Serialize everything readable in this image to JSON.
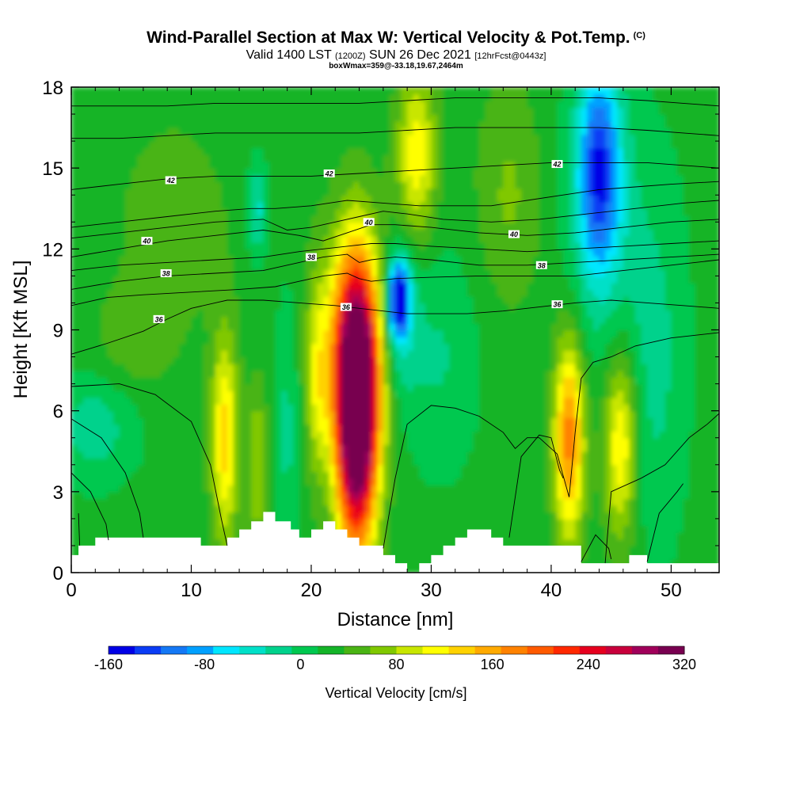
{
  "header": {
    "title": "Wind-Parallel Section at Max W: Vertical Velocity & Pot.Temp.",
    "copyright": "(C)",
    "subtitle_a": "Valid 1400 LST",
    "subtitle_b": "(1200Z)",
    "subtitle_c": "SUN 26 Dec 2021",
    "subtitle_d": "[12hrFcst@0443z]",
    "box_info": "boxWmax=359@-33.18,19.67,2464m"
  },
  "chart_data": {
    "type": "heatmap",
    "title": "Wind-Parallel Section at Max W: Vertical Velocity & Pot.Temp.",
    "xlabel": "Distance [nm]",
    "ylabel": "Height [Kft MSL]",
    "xlim": [
      0,
      54
    ],
    "ylim": [
      0,
      18
    ],
    "x_ticks": [
      "0",
      "10",
      "20",
      "30",
      "40",
      "50"
    ],
    "y_ticks": [
      "0",
      "3",
      "6",
      "9",
      "12",
      "15",
      "18"
    ],
    "x_tick_values": [
      0,
      10,
      20,
      30,
      40,
      50
    ],
    "y_tick_values": [
      0,
      3,
      6,
      9,
      12,
      15,
      18
    ],
    "colorbar": {
      "label": "Vertical Velocity [cm/s]",
      "min": -160,
      "max": 320,
      "step": 20,
      "tick_labels": [
        "-160",
        "-80",
        "0",
        "80",
        "160",
        "240",
        "320"
      ],
      "tick_values": [
        -160,
        -80,
        0,
        80,
        160,
        240,
        320
      ],
      "colors": [
        "#0000e6",
        "#0a3cf5",
        "#1478f5",
        "#00a0ff",
        "#00e6ff",
        "#00e0c8",
        "#00d28c",
        "#00c850",
        "#14b428",
        "#4ab414",
        "#80c800",
        "#c8e600",
        "#ffff00",
        "#ffd200",
        "#ffaa00",
        "#ff8200",
        "#ff5a00",
        "#ff2800",
        "#e6001e",
        "#c8003c",
        "#a0005a",
        "#780050"
      ]
    },
    "features": [
      {
        "kind": "updraft",
        "x": 23.8,
        "y": 6.0,
        "peak": 340,
        "sx": 1.2,
        "sy": 3.5
      },
      {
        "kind": "updraft",
        "x": 23.5,
        "y": 8.5,
        "peak": 90,
        "sx": 2.2,
        "sy": 3.0
      },
      {
        "kind": "updraft",
        "x": 41.5,
        "y": 5.0,
        "peak": 145,
        "sx": 0.9,
        "sy": 2.6
      },
      {
        "kind": "updraft",
        "x": 45.8,
        "y": 4.8,
        "peak": 100,
        "sx": 1.0,
        "sy": 2.5
      },
      {
        "kind": "updraft",
        "x": 12.8,
        "y": 5.0,
        "peak": 100,
        "sx": 0.8,
        "sy": 2.8
      },
      {
        "kind": "updraft",
        "x": 28.8,
        "y": 15.5,
        "peak": 85,
        "sx": 1.2,
        "sy": 2.3
      },
      {
        "kind": "updraft",
        "x": 20.5,
        "y": 7.0,
        "peak": 50,
        "sx": 0.6,
        "sy": 2.5
      },
      {
        "kind": "updraft",
        "x": 15.5,
        "y": 4.0,
        "peak": 55,
        "sx": 0.6,
        "sy": 2.0
      },
      {
        "kind": "updraft",
        "x": 8.5,
        "y": 13.0,
        "peak": 30,
        "sx": 3.0,
        "sy": 2.5
      },
      {
        "kind": "updraft",
        "x": 36.5,
        "y": 14.0,
        "peak": 35,
        "sx": 2.0,
        "sy": 3.0
      },
      {
        "kind": "updraft",
        "x": 5.0,
        "y": 8.5,
        "peak": 25,
        "sx": 2.5,
        "sy": 1.5
      },
      {
        "kind": "downdraft",
        "x": 27.3,
        "y": 10.2,
        "peak": -160,
        "sx": 0.6,
        "sy": 0.9
      },
      {
        "kind": "downdraft",
        "x": 27.3,
        "y": 9.5,
        "peak": -60,
        "sx": 1.1,
        "sy": 2.0
      },
      {
        "kind": "downdraft",
        "x": 44.0,
        "y": 15.0,
        "peak": -120,
        "sx": 1.2,
        "sy": 2.6
      },
      {
        "kind": "downdraft",
        "x": 44.0,
        "y": 13.5,
        "peak": -40,
        "sx": 2.2,
        "sy": 4.0
      },
      {
        "kind": "downdraft",
        "x": 15.5,
        "y": 13.5,
        "peak": -55,
        "sx": 0.6,
        "sy": 1.2
      },
      {
        "kind": "downdraft",
        "x": 2.0,
        "y": 5.5,
        "peak": -40,
        "sx": 2.5,
        "sy": 1.5
      },
      {
        "kind": "downdraft",
        "x": 30.5,
        "y": 8.0,
        "peak": -30,
        "sx": 2.5,
        "sy": 3.0
      },
      {
        "kind": "downdraft",
        "x": 48.5,
        "y": 8.0,
        "peak": -35,
        "sx": 2.0,
        "sy": 5.0
      },
      {
        "kind": "downdraft",
        "x": 18.0,
        "y": 5.5,
        "peak": -35,
        "sx": 0.7,
        "sy": 3.5
      }
    ],
    "terrain": {
      "x": [
        0,
        0.6,
        0.6,
        2.0,
        2.0,
        10.8,
        10.8,
        13.0,
        13.0,
        14.0,
        14.0,
        15.0,
        15.0,
        16.0,
        16.0,
        17.0,
        17.0,
        18.3,
        18.3,
        19.0,
        19.0,
        20.0,
        20.0,
        21.0,
        21.0,
        22.0,
        22.0,
        23.0,
        23.0,
        24.0,
        24.0,
        26.0,
        26.0,
        27.0,
        27.0,
        28.0,
        28.0,
        29.0,
        29.0,
        30.0,
        30.0,
        31.0,
        31.0,
        32.0,
        32.0,
        33.0,
        33.0,
        35.0,
        35.0,
        36.0,
        36.0,
        42.5,
        42.5,
        46.5,
        46.5,
        48.0,
        48.0,
        54.0
      ],
      "z": [
        0.65,
        0.65,
        1.0,
        1.0,
        1.3,
        1.3,
        1.0,
        1.0,
        1.3,
        1.3,
        1.6,
        1.6,
        1.9,
        1.9,
        2.25,
        2.25,
        1.9,
        1.9,
        1.6,
        1.6,
        1.3,
        1.3,
        1.6,
        1.6,
        1.9,
        1.9,
        1.6,
        1.6,
        1.3,
        1.3,
        1.0,
        1.0,
        0.65,
        0.65,
        0.35,
        0.35,
        0.0,
        0.0,
        0.35,
        0.35,
        0.65,
        0.65,
        1.0,
        1.0,
        1.3,
        1.3,
        1.6,
        1.6,
        1.3,
        1.3,
        1.0,
        1.0,
        0.35,
        0.35,
        0.65,
        0.65,
        0.35,
        0.35
      ]
    },
    "isentropes": [
      {
        "label": "36",
        "x": [
          0,
          3,
          6,
          8,
          10,
          13,
          16,
          19,
          22,
          24,
          26,
          28,
          30,
          33,
          36,
          39,
          42,
          45,
          48,
          51,
          54
        ],
        "y": [
          8.1,
          8.5,
          8.95,
          9.4,
          9.8,
          10.1,
          10.1,
          10.0,
          9.9,
          9.8,
          9.7,
          9.6,
          9.6,
          9.6,
          9.7,
          9.85,
          10.0,
          10.1,
          10.0,
          9.9,
          9.8
        ]
      },
      {
        "label": "38",
        "x": [
          0,
          3,
          6,
          10,
          14,
          17,
          19,
          21,
          23,
          24,
          25,
          27,
          30,
          34,
          38,
          42,
          46,
          50,
          54
        ],
        "y": [
          9.9,
          10.2,
          10.3,
          10.4,
          10.5,
          10.6,
          10.8,
          11.0,
          11.1,
          10.9,
          10.8,
          10.9,
          10.95,
          11.0,
          11.0,
          11.0,
          11.2,
          11.4,
          11.6
        ]
      },
      {
        "label": "38",
        "x": [
          0,
          4,
          8,
          12,
          16,
          19,
          21,
          23,
          24,
          25,
          27,
          30,
          34,
          38,
          42,
          46,
          50,
          54
        ],
        "y": [
          10.5,
          10.8,
          11.0,
          11.1,
          11.2,
          11.5,
          11.7,
          11.8,
          11.5,
          11.6,
          11.7,
          11.6,
          11.4,
          11.4,
          11.5,
          11.6,
          11.7,
          11.8
        ]
      },
      {
        "label": "",
        "x": [
          0,
          4,
          8,
          12,
          16,
          19,
          21,
          23,
          25,
          27,
          30,
          34,
          38,
          42,
          46,
          50,
          54
        ],
        "y": [
          11.2,
          11.4,
          11.5,
          11.6,
          11.7,
          11.9,
          12.0,
          12.1,
          12.2,
          12.2,
          12.1,
          12.0,
          11.9,
          12.0,
          12.1,
          12.2,
          12.3
        ]
      },
      {
        "label": "40",
        "x": [
          0,
          4,
          8,
          12,
          16,
          19,
          21,
          23,
          25,
          27,
          30,
          34,
          38,
          42,
          46,
          50,
          54
        ],
        "y": [
          11.7,
          12.0,
          12.3,
          12.5,
          12.7,
          12.5,
          12.3,
          12.6,
          12.9,
          12.9,
          12.8,
          12.6,
          12.5,
          12.6,
          12.8,
          13.0,
          13.1
        ]
      },
      {
        "label": "",
        "x": [
          0,
          4,
          8,
          12,
          16,
          18,
          20,
          22,
          24,
          26,
          28,
          31,
          35,
          39,
          43,
          47,
          51,
          54
        ],
        "y": [
          12.4,
          12.6,
          12.8,
          13.0,
          13.1,
          12.7,
          12.8,
          13.0,
          13.2,
          13.4,
          13.3,
          13.1,
          13.0,
          13.1,
          13.3,
          13.5,
          13.7,
          13.8
        ]
      },
      {
        "label": "40",
        "x": [
          0,
          4,
          8,
          12,
          15,
          17,
          20,
          23,
          26,
          29,
          32,
          35,
          38,
          41,
          44,
          47,
          50,
          54
        ],
        "y": [
          12.8,
          13.0,
          13.2,
          13.4,
          13.5,
          13.5,
          13.6,
          13.8,
          13.7,
          13.6,
          13.6,
          13.6,
          13.8,
          14.0,
          14.2,
          14.3,
          14.4,
          14.5
        ]
      },
      {
        "label": "42",
        "x": [
          0,
          4,
          8,
          12,
          16,
          20,
          24,
          28,
          32,
          36,
          40,
          44,
          48,
          51,
          54
        ],
        "y": [
          14.2,
          14.4,
          14.6,
          14.7,
          14.7,
          14.7,
          14.8,
          14.9,
          15.0,
          15.1,
          15.2,
          15.2,
          15.2,
          15.1,
          15.0
        ]
      },
      {
        "label": "",
        "x": [
          0,
          4,
          8,
          12,
          16,
          20,
          24,
          28,
          32,
          36,
          40,
          44,
          48,
          51,
          54
        ],
        "y": [
          16.1,
          16.1,
          16.2,
          16.3,
          16.3,
          16.3,
          16.3,
          16.4,
          16.5,
          16.5,
          16.5,
          16.5,
          16.4,
          16.3,
          16.2
        ]
      },
      {
        "label": "",
        "x": [
          0,
          4,
          8,
          12,
          16,
          20,
          24,
          28,
          32,
          36,
          40,
          44,
          48,
          51,
          54
        ],
        "y": [
          17.3,
          17.3,
          17.3,
          17.4,
          17.4,
          17.4,
          17.4,
          17.5,
          17.6,
          17.6,
          17.6,
          17.6,
          17.5,
          17.4,
          17.3
        ]
      },
      {
        "label": "",
        "x": [
          26.0,
          27.0,
          28.0,
          30.0,
          32.0,
          34.0,
          36.0,
          37.0,
          38.0,
          39.0,
          40.5,
          41.5,
          42.0,
          42.5,
          43.5,
          45.0,
          47.0,
          50.0,
          52.0,
          54.0
        ],
        "y": [
          0.9,
          3.5,
          5.5,
          6.2,
          6.1,
          5.8,
          5.2,
          4.6,
          5.0,
          5.0,
          4.4,
          2.8,
          5.2,
          7.2,
          7.8,
          8.0,
          8.4,
          8.7,
          8.8,
          8.9
        ]
      },
      {
        "label": "",
        "x": [
          0.0,
          4.0,
          7.0,
          10.0,
          11.6,
          12.5,
          13.0
        ],
        "y": [
          6.9,
          7.0,
          6.6,
          5.6,
          4.0,
          2.0,
          1.0
        ]
      },
      {
        "label": "",
        "x": [
          0.0,
          2.5,
          4.5,
          5.7,
          6.0
        ],
        "y": [
          5.7,
          5.0,
          3.7,
          2.2,
          1.3
        ]
      },
      {
        "label": "",
        "x": [
          0.0,
          1.6,
          2.9,
          3.1
        ],
        "y": [
          3.7,
          3.0,
          1.8,
          1.2
        ]
      },
      {
        "label": "",
        "x": [
          0.6,
          0.7
        ],
        "y": [
          2.2,
          1.0
        ]
      },
      {
        "label": "",
        "x": [
          36.5,
          37.5,
          39.0,
          40.0,
          40.7,
          41.0
        ],
        "y": [
          1.3,
          4.3,
          5.1,
          5.0,
          3.8,
          3.5
        ]
      },
      {
        "label": "",
        "x": [
          44.5,
          45.0,
          47.5,
          49.5,
          51.5,
          53.0,
          54.0
        ],
        "y": [
          0.35,
          3.0,
          3.5,
          4.0,
          5.0,
          5.5,
          5.9
        ]
      },
      {
        "label": "",
        "x": [
          48.0,
          49.0,
          50.5,
          51.0
        ],
        "y": [
          0.4,
          2.2,
          3.0,
          3.3
        ]
      },
      {
        "label": "",
        "x": [
          42.5,
          43.7,
          44.8,
          45.0
        ],
        "y": [
          0.4,
          1.4,
          0.9,
          0.5
        ]
      }
    ],
    "isentrope_labels": [
      {
        "text": "42",
        "x": 8.3,
        "y": 14.55
      },
      {
        "text": "42",
        "x": 21.5,
        "y": 14.8
      },
      {
        "text": "42",
        "x": 40.5,
        "y": 15.15
      },
      {
        "text": "40",
        "x": 24.8,
        "y": 13.0
      },
      {
        "text": "40",
        "x": 6.3,
        "y": 12.3
      },
      {
        "text": "40",
        "x": 36.9,
        "y": 12.55
      },
      {
        "text": "38",
        "x": 20.0,
        "y": 11.7
      },
      {
        "text": "38",
        "x": 39.2,
        "y": 11.4
      },
      {
        "text": "38",
        "x": 7.9,
        "y": 11.1
      },
      {
        "text": "36",
        "x": 22.9,
        "y": 9.85
      },
      {
        "text": "36",
        "x": 40.5,
        "y": 9.95
      },
      {
        "text": "36",
        "x": 7.3,
        "y": 9.4
      }
    ]
  }
}
